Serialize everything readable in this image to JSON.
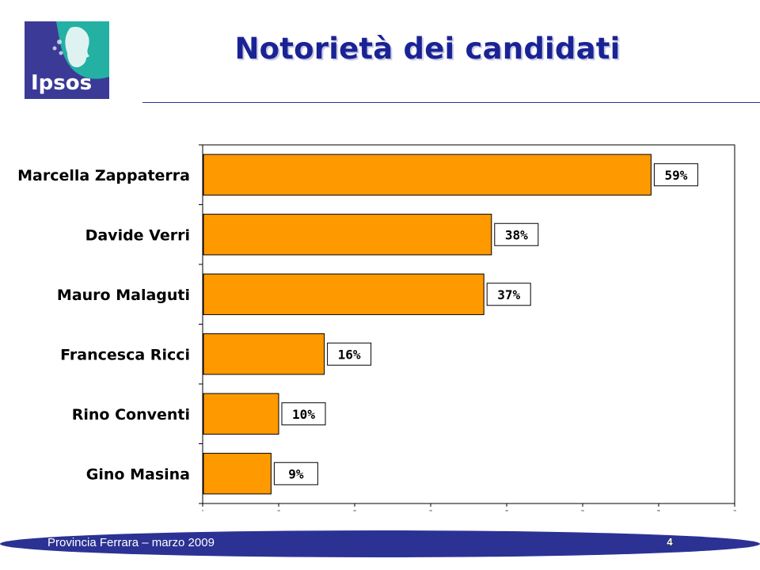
{
  "logo": {
    "text": "Ipsos",
    "colors": {
      "blue": "#3b3a96",
      "teal": "#25b0a4"
    }
  },
  "slide": {
    "title": "Notorietà dei candidati"
  },
  "footer": {
    "text": "Provincia Ferrara – marzo 2009",
    "page": "4"
  },
  "colors": {
    "bar": "#ff9900",
    "title": "#1a2394",
    "footer": "#2b3293"
  },
  "chart_data": {
    "type": "bar",
    "orientation": "horizontal",
    "categories": [
      "Marcella Zappaterra",
      "Davide Verri",
      "Mauro Malaguti",
      "Francesca Ricci",
      "Rino Conventi",
      "Gino Masina"
    ],
    "values": [
      59,
      38,
      37,
      16,
      10,
      9
    ],
    "data_labels": [
      "59%",
      "38%",
      "37%",
      "16%",
      "10%",
      "9%"
    ],
    "xlim": [
      0,
      70
    ],
    "xticks": [
      0,
      10,
      20,
      30,
      40,
      50,
      60,
      70
    ],
    "xlabel": "",
    "ylabel": "",
    "grid": false,
    "legend": "none"
  }
}
